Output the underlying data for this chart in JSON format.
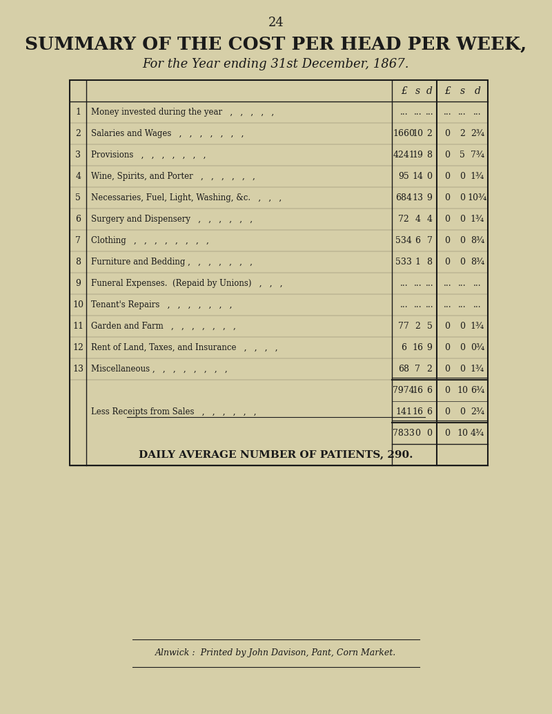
{
  "page_number": "24",
  "title": "SUMMARY OF THE COST PER HEAD PER WEEK,",
  "subtitle": "For the Year ending 31st December, 1867.",
  "bg_color": "#d6cfa8",
  "text_color": "#1a1a1a",
  "footer_text": "Alnwick :  Printed by John Davison, Pant, Corn Market.",
  "col_headers": [
    "£",
    "s",
    "d",
    "£",
    "s",
    "d"
  ],
  "rows": [
    {
      "num": "1",
      "label": "Money invested during the year   ,   ,   ,   ,   ,",
      "c1": "...",
      "c2": "...",
      "c3": "...",
      "c4": "...",
      "c5": "...",
      "c6": "..."
    },
    {
      "num": "2",
      "label": "Salaries and Wages   ,   ,   ,   ,   ,   ,   ,",
      "c1": "1660",
      "c2": "10",
      "c3": "2",
      "c4": "0",
      "c5": "2",
      "c6": "2¾"
    },
    {
      "num": "3",
      "label": "Provisions   ,   ,   ,   ,   ,   ,   ,",
      "c1": "4241",
      "c2": "19",
      "c3": "8",
      "c4": "0",
      "c5": "5",
      "c6": "7¾"
    },
    {
      "num": "4",
      "label": "Wine, Spirits, and Porter   ,   ,   ,   ,   ,   ,",
      "c1": "95",
      "c2": "14",
      "c3": "0",
      "c4": "0",
      "c5": "0",
      "c6": "1¾"
    },
    {
      "num": "5",
      "label": "Necessaries, Fuel, Light, Washing, &c.   ,   ,   ,",
      "c1": "684",
      "c2": "13",
      "c3": "9",
      "c4": "0",
      "c5": "0",
      "c6": "10¾"
    },
    {
      "num": "6",
      "label": "Surgery and Dispensery   ,   ,   ,   ,   ,   ,",
      "c1": "72",
      "c2": "4",
      "c3": "4",
      "c4": "0",
      "c5": "0",
      "c6": "1¾"
    },
    {
      "num": "7",
      "label": "Clothing   ,   ,   ,   ,   ,   ,   ,   ,",
      "c1": "534",
      "c2": "6",
      "c3": "7",
      "c4": "0",
      "c5": "0",
      "c6": "8¾"
    },
    {
      "num": "8",
      "label": "Furniture and Bedding ,   ,   ,   ,   ,   ,   ,",
      "c1": "533",
      "c2": "1",
      "c3": "8",
      "c4": "0",
      "c5": "0",
      "c6": "8¾"
    },
    {
      "num": "9",
      "label": "Funeral Expenses.  (Repaid by Unions)   ,   ,   ,",
      "c1": "...",
      "c2": "...",
      "c3": "...",
      "c4": "...",
      "c5": "...",
      "c6": "..."
    },
    {
      "num": "10",
      "label": "Tenant's Repairs   ,   ,   ,   ,   ,   ,   ,",
      "c1": "...",
      "c2": "...",
      "c3": "...",
      "c4": "...",
      "c5": "...",
      "c6": "..."
    },
    {
      "num": "11",
      "label": "Garden and Farm   ,   ,   ,   ,   ,   ,   ,",
      "c1": "77",
      "c2": "2",
      "c3": "5",
      "c4": "0",
      "c5": "0",
      "c6": "1¾"
    },
    {
      "num": "12",
      "label": "Rent of Land, Taxes, and Insurance   ,   ,   ,   ,",
      "c1": "6",
      "c2": "16",
      "c3": "9",
      "c4": "0",
      "c5": "0",
      "c6": "0¾"
    },
    {
      "num": "13",
      "label": "Miscellaneous ,   ,   ,   ,   ,   ,   ,   ,",
      "c1": "68",
      "c2": "7",
      "c3": "2",
      "c4": "0",
      "c5": "0",
      "c6": "1¾"
    }
  ],
  "subtotal": {
    "c1": "7974",
    "c2": "16",
    "c3": "6",
    "c4": "0",
    "c5": "10",
    "c6": "6¾"
  },
  "less_row": {
    "label": "Less Receipts from Sales   ,   ,   ,   ,   ,   ,",
    "c1": "141",
    "c2": "16",
    "c3": "6",
    "c4": "0",
    "c5": "0",
    "c6": "2¾"
  },
  "total": {
    "c1": "7833",
    "c2": "0",
    "c3": "0",
    "c4": "0",
    "c5": "10",
    "c6": "4¾"
  },
  "daily_avg": "DAILY AVERAGE NUMBER OF PATIENTS, 290."
}
